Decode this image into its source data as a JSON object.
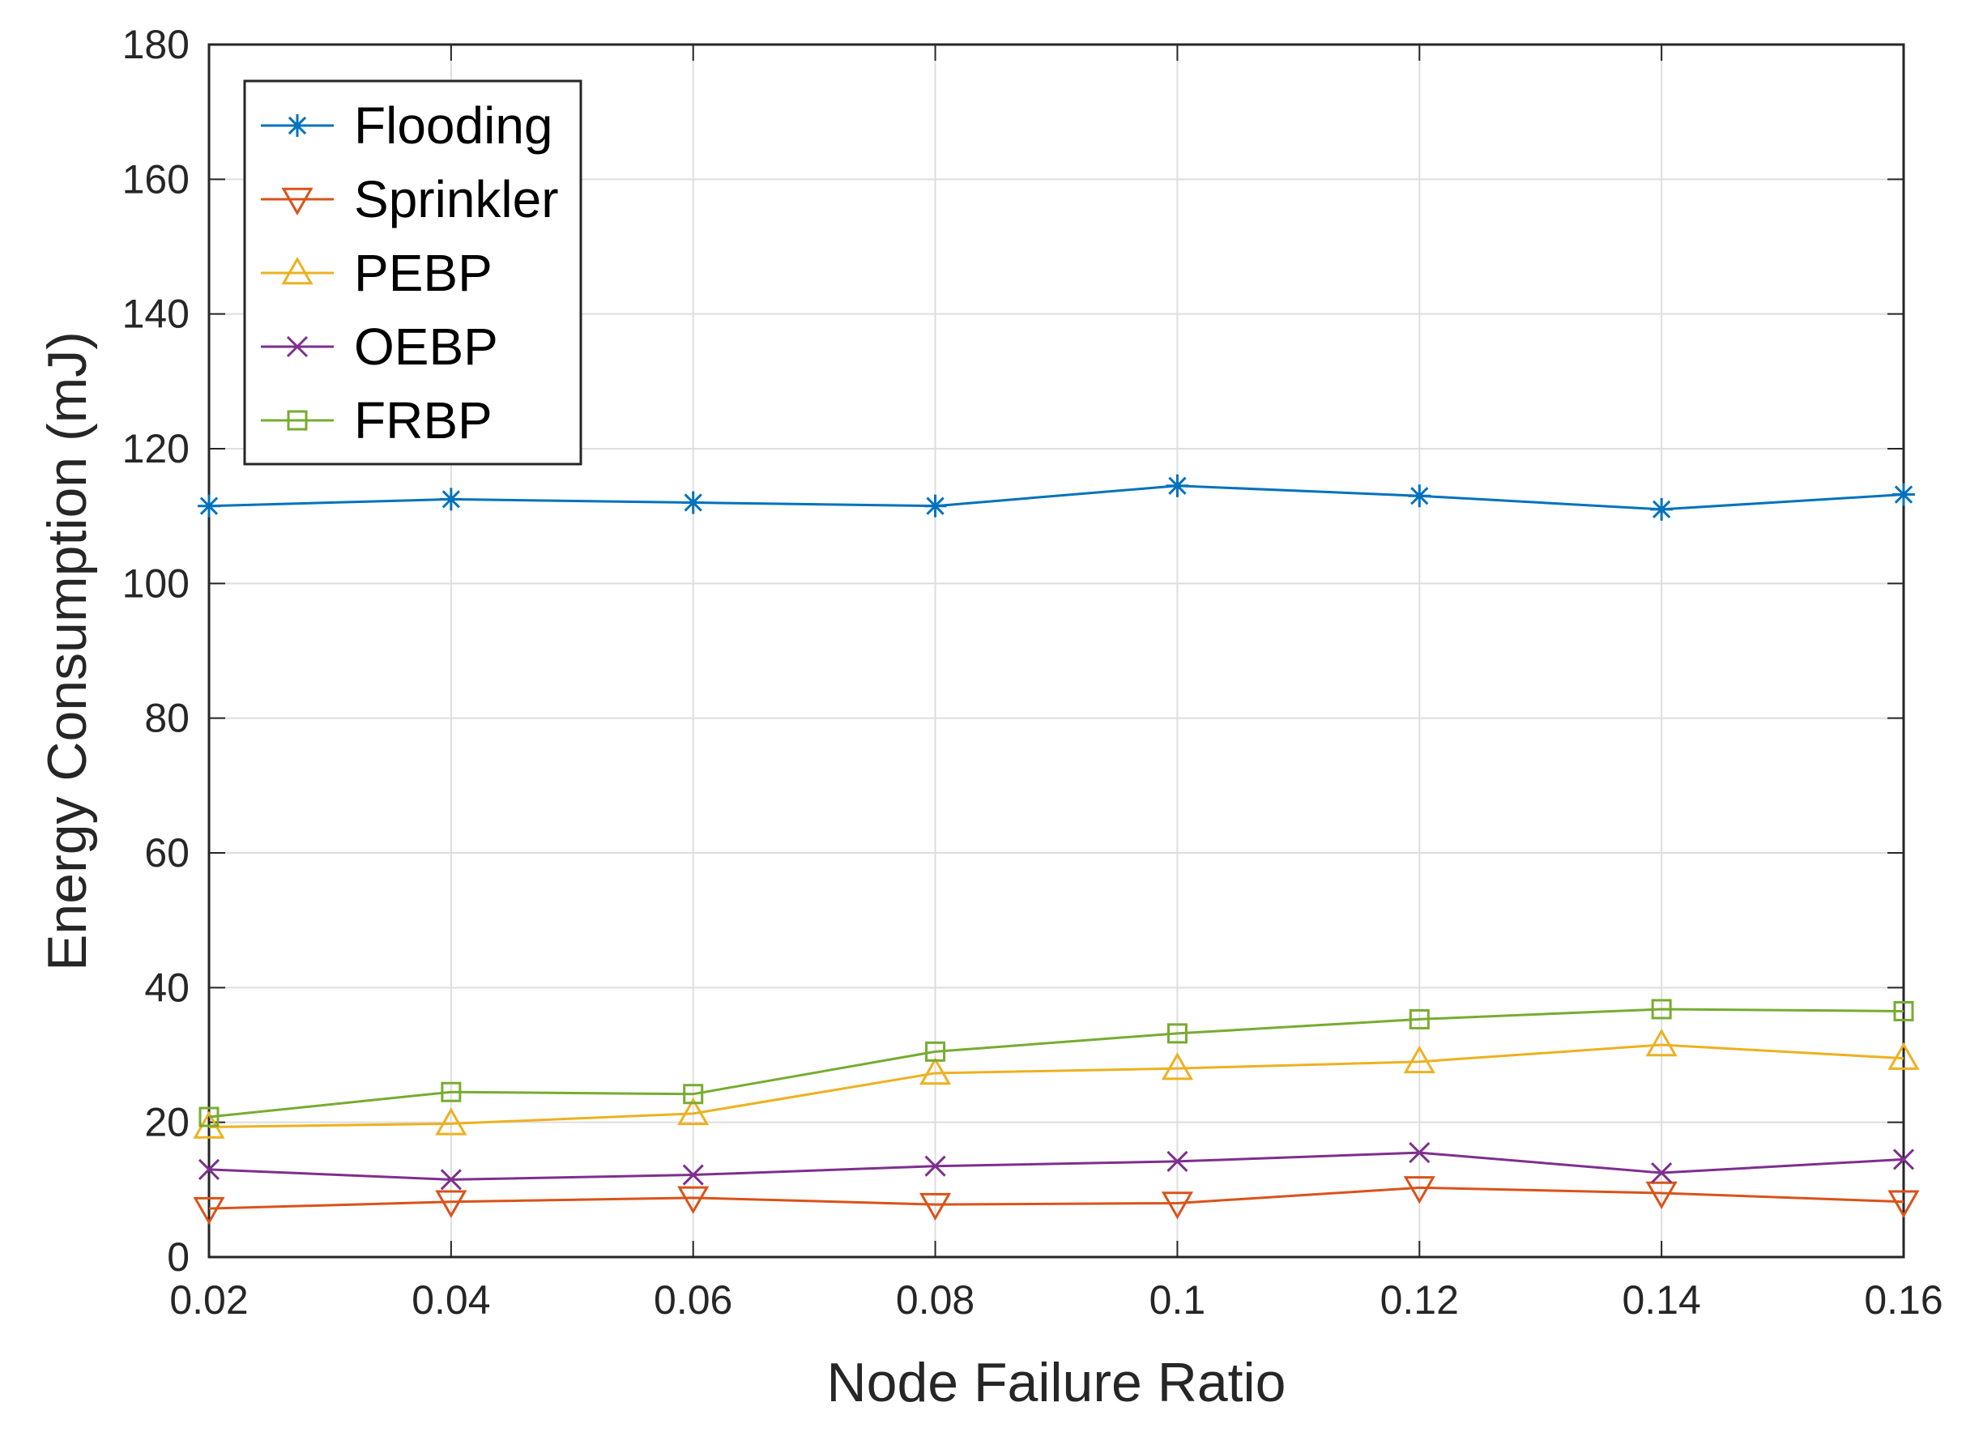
{
  "chart_data": {
    "type": "line",
    "title": "",
    "xlabel": "Node Failure Ratio",
    "ylabel": "Energy Consumption (mJ)",
    "x": [
      0.02,
      0.04,
      0.06,
      0.08,
      0.1,
      0.12,
      0.14,
      0.16
    ],
    "x_tick_labels": [
      "0.02",
      "0.04",
      "0.06",
      "0.08",
      "0.1",
      "0.12",
      "0.14",
      "0.16"
    ],
    "xlim": [
      0.02,
      0.16
    ],
    "ylim": [
      0,
      180
    ],
    "y_ticks": [
      0,
      20,
      40,
      60,
      80,
      100,
      120,
      140,
      160,
      180
    ],
    "y_tick_labels": [
      "0",
      "20",
      "40",
      "60",
      "80",
      "100",
      "120",
      "140",
      "160",
      "180"
    ],
    "grid": true,
    "legend_position": "top-left",
    "series": [
      {
        "name": "Flooding",
        "color": "#0072BD",
        "marker": "asterisk",
        "values": [
          111.5,
          112.5,
          112.0,
          111.5,
          114.5,
          113.0,
          111.0,
          113.2
        ]
      },
      {
        "name": "Sprinkler",
        "color": "#D95319",
        "marker": "triangle-down",
        "values": [
          7.2,
          8.2,
          8.8,
          7.8,
          8.0,
          10.3,
          9.5,
          8.2
        ]
      },
      {
        "name": "PEBP",
        "color": "#EDB120",
        "marker": "triangle-up",
        "values": [
          19.3,
          19.8,
          21.3,
          27.3,
          28.0,
          29.0,
          31.5,
          29.5
        ]
      },
      {
        "name": "OEBP",
        "color": "#7E2F8E",
        "marker": "x",
        "values": [
          13.0,
          11.5,
          12.2,
          13.5,
          14.2,
          15.5,
          12.5,
          14.5
        ]
      },
      {
        "name": "FRBP",
        "color": "#77AC30",
        "marker": "square",
        "values": [
          20.8,
          24.5,
          24.2,
          30.5,
          33.2,
          35.3,
          36.8,
          36.5
        ]
      }
    ]
  }
}
